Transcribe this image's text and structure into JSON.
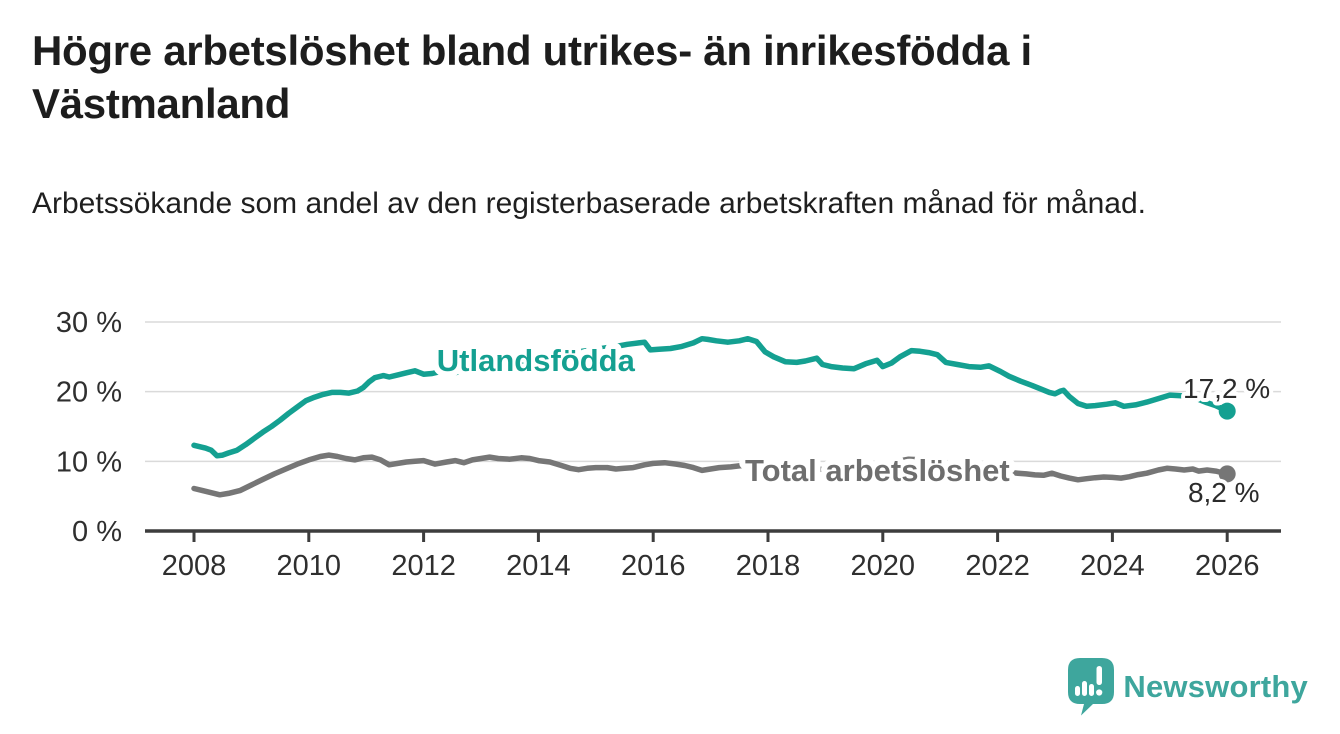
{
  "header": {
    "title": "Högre arbetslöshet bland utrikes- än inrikesfödda i Västmanland",
    "subtitle": "Arbetssökande som andel av den registerbaserade arbetskraften månad för månad."
  },
  "colors": {
    "foreign_born_line": "#14A091",
    "total_line": "#767676",
    "total_label": "#6E6E6E",
    "axis": "#3D3D3D",
    "tick_label": "#2F2F2F",
    "grid": "#DADADA",
    "value_label": "#2B2B2B",
    "brand_teal": "#3EA69D",
    "background": "#FFFFFF"
  },
  "chart_data": {
    "type": "line",
    "title": "Högre arbetslöshet bland utrikes- än inrikesfödda i Västmanland",
    "subtitle": "Arbetssökande som andel av den registerbaserade arbetskraften månad för månad.",
    "xlabel": "",
    "ylabel": "",
    "xlim": [
      2007.15,
      2026.9
    ],
    "ylim": [
      0,
      31
    ],
    "grid": "horizontal",
    "legend_position": "inline-line-labels",
    "x_ticks": [
      2008,
      2010,
      2012,
      2014,
      2016,
      2018,
      2020,
      2022,
      2024,
      2026
    ],
    "x_tick_labels": [
      "2008",
      "2010",
      "2012",
      "2014",
      "2016",
      "2018",
      "2020",
      "2022",
      "2024",
      "2026"
    ],
    "y_ticks": [
      0,
      10,
      20,
      30
    ],
    "y_tick_labels": [
      "0 %",
      "10 %",
      "20 %",
      "30 %"
    ],
    "series": [
      {
        "name": "Utlandsfödda",
        "color": "#14A091",
        "line_label": {
          "text": "Utlandsfödda",
          "x": 2012.23,
          "y": 23.0,
          "anchor": "start"
        },
        "end_label": {
          "text": "17,2 %",
          "x": 2025.99,
          "y": 19.1,
          "anchor": "middle"
        },
        "end_dot": true,
        "points": [
          [
            2008.0,
            12.3
          ],
          [
            2008.1,
            12.1
          ],
          [
            2008.2,
            11.9
          ],
          [
            2008.3,
            11.6
          ],
          [
            2008.4,
            10.8
          ],
          [
            2008.5,
            10.9
          ],
          [
            2008.6,
            11.2
          ],
          [
            2008.75,
            11.6
          ],
          [
            2008.9,
            12.4
          ],
          [
            2009.05,
            13.3
          ],
          [
            2009.2,
            14.2
          ],
          [
            2009.35,
            15.0
          ],
          [
            2009.5,
            15.9
          ],
          [
            2009.65,
            16.9
          ],
          [
            2009.8,
            17.8
          ],
          [
            2009.95,
            18.7
          ],
          [
            2010.1,
            19.2
          ],
          [
            2010.25,
            19.6
          ],
          [
            2010.4,
            19.9
          ],
          [
            2010.55,
            19.9
          ],
          [
            2010.7,
            19.8
          ],
          [
            2010.85,
            20.1
          ],
          [
            2010.95,
            20.6
          ],
          [
            2011.05,
            21.4
          ],
          [
            2011.15,
            22.0
          ],
          [
            2011.3,
            22.3
          ],
          [
            2011.4,
            22.1
          ],
          [
            2011.55,
            22.4
          ],
          [
            2011.7,
            22.7
          ],
          [
            2011.85,
            23.0
          ],
          [
            2012.0,
            22.5
          ],
          [
            2012.15,
            22.6
          ],
          [
            2012.3,
            22.9
          ],
          [
            2012.45,
            22.6
          ],
          [
            2012.6,
            22.8
          ],
          [
            2012.75,
            23.0
          ],
          [
            2012.9,
            23.2
          ],
          [
            2013.1,
            23.5
          ],
          [
            2013.35,
            23.8
          ],
          [
            2013.6,
            24.2
          ],
          [
            2013.85,
            24.6
          ],
          [
            2014.1,
            25.0
          ],
          [
            2014.35,
            25.3
          ],
          [
            2014.6,
            25.6
          ],
          [
            2014.85,
            25.9
          ],
          [
            2015.1,
            26.2
          ],
          [
            2015.35,
            26.5
          ],
          [
            2015.55,
            26.8
          ],
          [
            2015.75,
            27.0
          ],
          [
            2015.85,
            27.1
          ],
          [
            2015.95,
            26.0
          ],
          [
            2016.1,
            26.1
          ],
          [
            2016.3,
            26.2
          ],
          [
            2016.5,
            26.5
          ],
          [
            2016.7,
            27.0
          ],
          [
            2016.85,
            27.6
          ],
          [
            2016.95,
            27.5
          ],
          [
            2017.1,
            27.3
          ],
          [
            2017.3,
            27.1
          ],
          [
            2017.5,
            27.3
          ],
          [
            2017.65,
            27.6
          ],
          [
            2017.8,
            27.2
          ],
          [
            2017.95,
            25.7
          ],
          [
            2018.1,
            25.0
          ],
          [
            2018.3,
            24.3
          ],
          [
            2018.5,
            24.2
          ],
          [
            2018.65,
            24.4
          ],
          [
            2018.85,
            24.8
          ],
          [
            2018.95,
            23.9
          ],
          [
            2019.1,
            23.6
          ],
          [
            2019.3,
            23.4
          ],
          [
            2019.5,
            23.3
          ],
          [
            2019.7,
            24.0
          ],
          [
            2019.9,
            24.5
          ],
          [
            2020.0,
            23.6
          ],
          [
            2020.15,
            24.1
          ],
          [
            2020.3,
            25.0
          ],
          [
            2020.5,
            25.9
          ],
          [
            2020.65,
            25.8
          ],
          [
            2020.8,
            25.6
          ],
          [
            2020.95,
            25.3
          ],
          [
            2021.1,
            24.2
          ],
          [
            2021.3,
            23.9
          ],
          [
            2021.5,
            23.6
          ],
          [
            2021.7,
            23.5
          ],
          [
            2021.85,
            23.7
          ],
          [
            2022.05,
            22.9
          ],
          [
            2022.2,
            22.2
          ],
          [
            2022.4,
            21.5
          ],
          [
            2022.6,
            20.9
          ],
          [
            2022.75,
            20.4
          ],
          [
            2022.9,
            19.9
          ],
          [
            2023.0,
            19.7
          ],
          [
            2023.1,
            20.1
          ],
          [
            2023.15,
            20.2
          ],
          [
            2023.25,
            19.3
          ],
          [
            2023.4,
            18.3
          ],
          [
            2023.55,
            17.9
          ],
          [
            2023.7,
            18.0
          ],
          [
            2023.9,
            18.2
          ],
          [
            2024.05,
            18.4
          ],
          [
            2024.2,
            17.9
          ],
          [
            2024.4,
            18.1
          ],
          [
            2024.6,
            18.5
          ],
          [
            2024.8,
            19.0
          ],
          [
            2025.0,
            19.5
          ],
          [
            2025.2,
            19.4
          ],
          [
            2025.35,
            19.1
          ],
          [
            2025.5,
            18.9
          ],
          [
            2025.65,
            18.4
          ],
          [
            2025.8,
            18.0
          ],
          [
            2025.9,
            17.6
          ],
          [
            2026.0,
            17.2
          ]
        ]
      },
      {
        "name": "Total arbetslöshet",
        "color": "#767676",
        "label_color": "#6E6E6E",
        "line_label": {
          "text": "Total arbetslöshet",
          "x": 2017.6,
          "y": 7.18,
          "anchor": "start"
        },
        "end_label": {
          "text": "8,2 %",
          "x": 2025.94,
          "y": 4.16,
          "anchor": "middle"
        },
        "end_dot": true,
        "points": [
          [
            2008.0,
            6.1
          ],
          [
            2008.15,
            5.8
          ],
          [
            2008.3,
            5.5
          ],
          [
            2008.45,
            5.2
          ],
          [
            2008.6,
            5.4
          ],
          [
            2008.8,
            5.8
          ],
          [
            2009.0,
            6.6
          ],
          [
            2009.2,
            7.4
          ],
          [
            2009.4,
            8.2
          ],
          [
            2009.6,
            8.9
          ],
          [
            2009.8,
            9.6
          ],
          [
            2010.0,
            10.2
          ],
          [
            2010.2,
            10.7
          ],
          [
            2010.35,
            10.9
          ],
          [
            2010.5,
            10.7
          ],
          [
            2010.65,
            10.4
          ],
          [
            2010.8,
            10.2
          ],
          [
            2010.95,
            10.5
          ],
          [
            2011.1,
            10.6
          ],
          [
            2011.25,
            10.2
          ],
          [
            2011.4,
            9.5
          ],
          [
            2011.55,
            9.7
          ],
          [
            2011.7,
            9.9
          ],
          [
            2011.85,
            10.0
          ],
          [
            2012.0,
            10.1
          ],
          [
            2012.2,
            9.6
          ],
          [
            2012.4,
            9.9
          ],
          [
            2012.55,
            10.1
          ],
          [
            2012.7,
            9.8
          ],
          [
            2012.85,
            10.2
          ],
          [
            2013.0,
            10.4
          ],
          [
            2013.15,
            10.6
          ],
          [
            2013.3,
            10.4
          ],
          [
            2013.5,
            10.3
          ],
          [
            2013.7,
            10.5
          ],
          [
            2013.85,
            10.4
          ],
          [
            2014.0,
            10.1
          ],
          [
            2014.2,
            9.9
          ],
          [
            2014.4,
            9.4
          ],
          [
            2014.55,
            9.0
          ],
          [
            2014.7,
            8.8
          ],
          [
            2014.85,
            9.0
          ],
          [
            2015.0,
            9.1
          ],
          [
            2015.2,
            9.1
          ],
          [
            2015.35,
            8.9
          ],
          [
            2015.5,
            9.0
          ],
          [
            2015.65,
            9.1
          ],
          [
            2015.85,
            9.5
          ],
          [
            2016.0,
            9.7
          ],
          [
            2016.2,
            9.8
          ],
          [
            2016.4,
            9.6
          ],
          [
            2016.55,
            9.4
          ],
          [
            2016.7,
            9.1
          ],
          [
            2016.85,
            8.7
          ],
          [
            2017.0,
            8.9
          ],
          [
            2017.15,
            9.1
          ],
          [
            2017.35,
            9.2
          ],
          [
            2017.55,
            9.4
          ],
          [
            2017.75,
            9.5
          ],
          [
            2017.95,
            9.4
          ],
          [
            2018.2,
            9.2
          ],
          [
            2018.5,
            9.0
          ],
          [
            2018.8,
            8.9
          ],
          [
            2019.1,
            8.8
          ],
          [
            2019.4,
            8.8
          ],
          [
            2019.7,
            9.0
          ],
          [
            2019.95,
            9.3
          ],
          [
            2020.2,
            9.9
          ],
          [
            2020.45,
            10.3
          ],
          [
            2020.7,
            10.2
          ],
          [
            2020.95,
            10.0
          ],
          [
            2021.2,
            9.7
          ],
          [
            2021.5,
            9.3
          ],
          [
            2021.8,
            8.9
          ],
          [
            2022.05,
            8.6
          ],
          [
            2022.2,
            8.4
          ],
          [
            2022.35,
            8.3
          ],
          [
            2022.5,
            8.2
          ],
          [
            2022.65,
            8.05
          ],
          [
            2022.8,
            8.0
          ],
          [
            2022.95,
            8.3
          ],
          [
            2023.1,
            7.9
          ],
          [
            2023.25,
            7.6
          ],
          [
            2023.4,
            7.35
          ],
          [
            2023.55,
            7.5
          ],
          [
            2023.7,
            7.65
          ],
          [
            2023.85,
            7.75
          ],
          [
            2024.0,
            7.7
          ],
          [
            2024.15,
            7.6
          ],
          [
            2024.3,
            7.8
          ],
          [
            2024.45,
            8.1
          ],
          [
            2024.6,
            8.3
          ],
          [
            2024.8,
            8.75
          ],
          [
            2024.95,
            9.0
          ],
          [
            2025.1,
            8.9
          ],
          [
            2025.25,
            8.75
          ],
          [
            2025.4,
            8.9
          ],
          [
            2025.5,
            8.6
          ],
          [
            2025.65,
            8.75
          ],
          [
            2025.8,
            8.6
          ],
          [
            2025.9,
            8.4
          ],
          [
            2026.0,
            8.2
          ]
        ]
      }
    ]
  },
  "footer": {
    "brand": "Newsworthy",
    "logo_icon": "newsworthy-speech-bubble-bar-chart-icon"
  }
}
